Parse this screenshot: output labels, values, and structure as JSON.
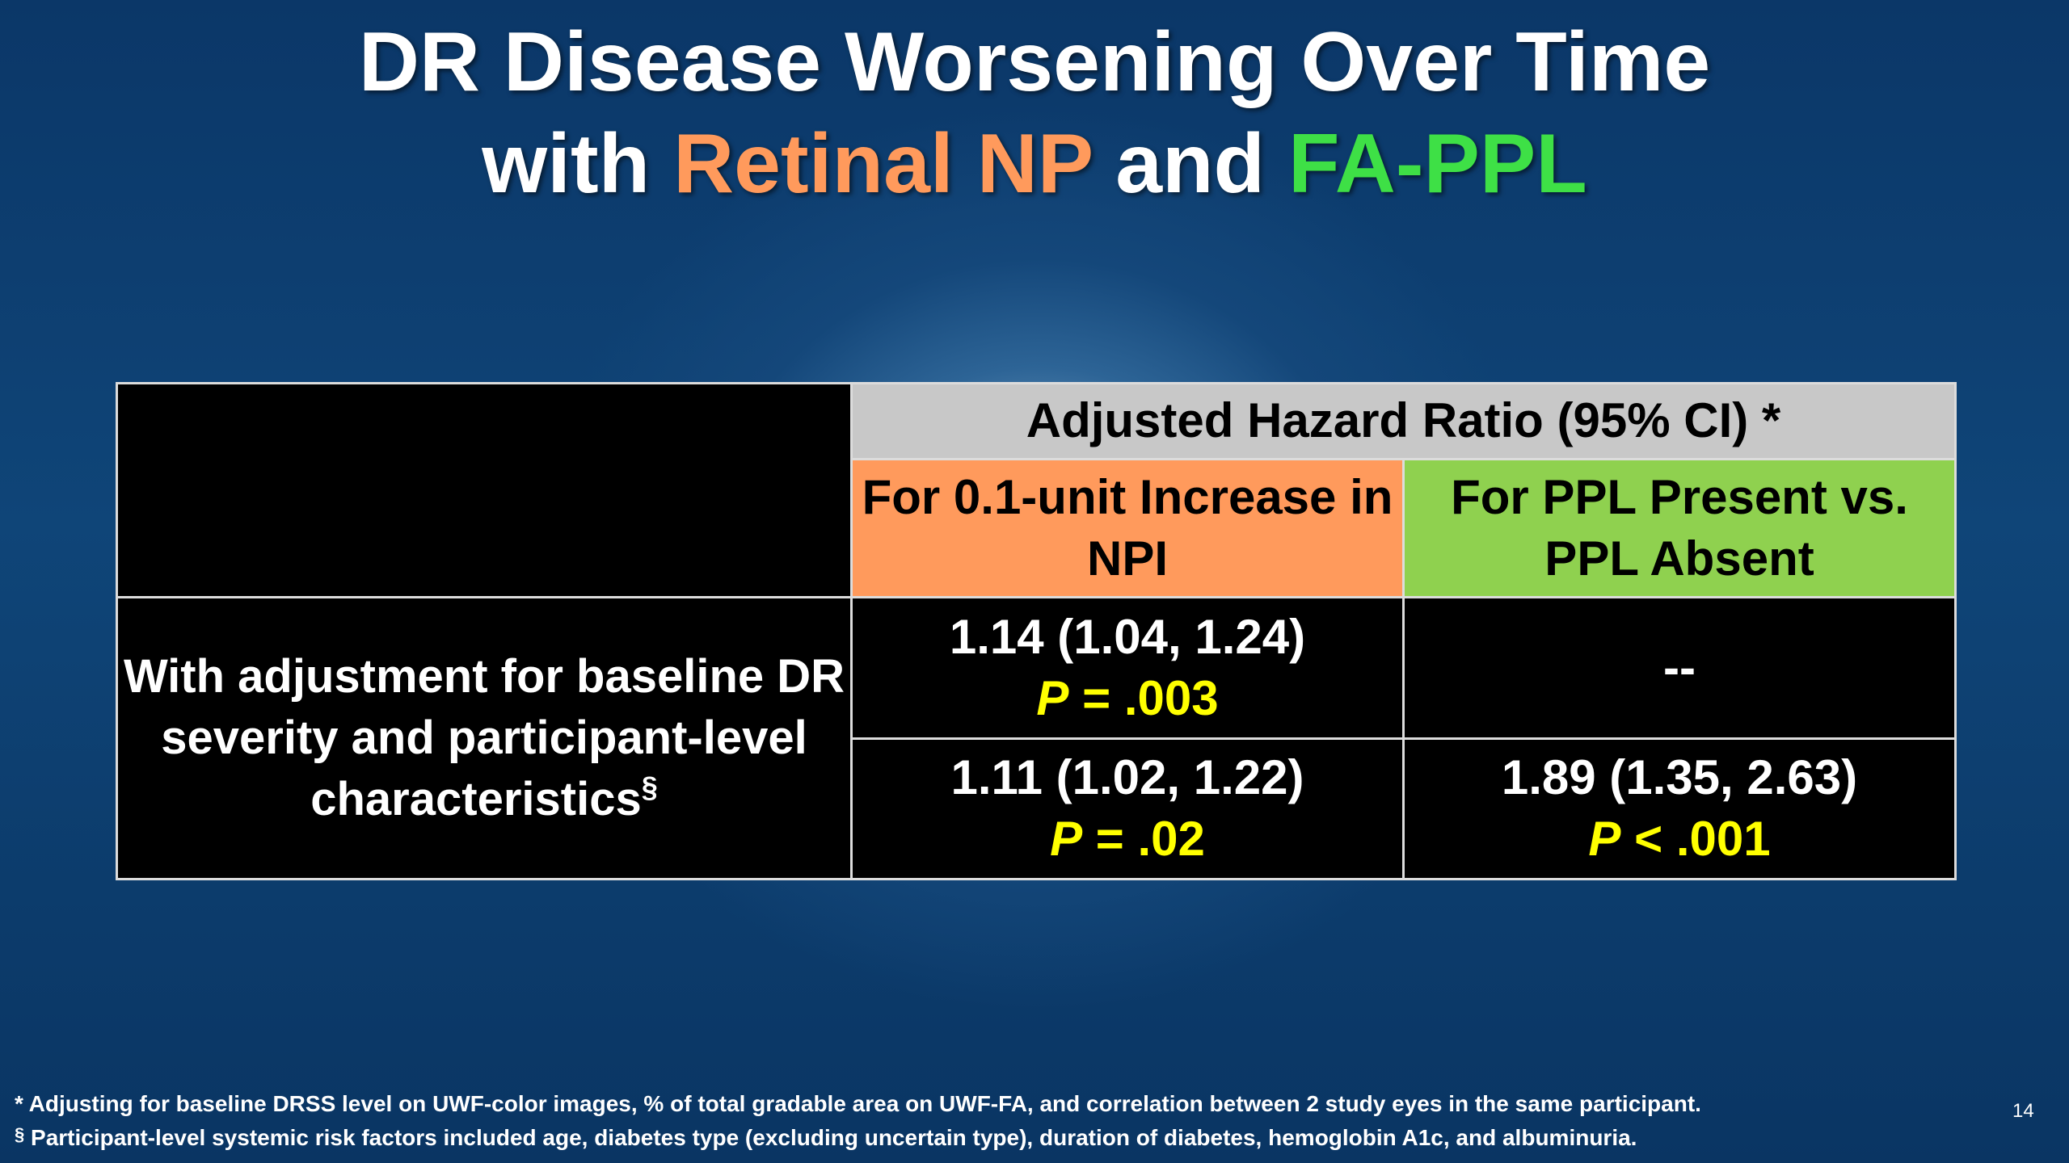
{
  "title": {
    "line1": "DR Disease Worsening Over Time",
    "line2_prefix": "with ",
    "line2_orange": "Retinal NP",
    "line2_mid": " and ",
    "line2_green": "FA-PPL"
  },
  "table": {
    "header": "Adjusted Hazard Ratio (95% CI) *",
    "col_npi": "For 0.1-unit Increase in NPI",
    "col_ppl": "For PPL Present vs. PPL Absent",
    "row_label": "With adjustment for baseline DR severity and participant-level characteristics",
    "row_label_mark": "§",
    "rows": [
      {
        "npi_ci": "1.14 (1.04, 1.24)",
        "npi_p_letter": "P",
        "npi_p_value": " = .003",
        "ppl_value": "--"
      },
      {
        "npi_ci": "1.11 (1.02, 1.22)",
        "npi_p_letter": "P",
        "npi_p_value": " = .02",
        "ppl_ci": "1.89 (1.35, 2.63)",
        "ppl_p_letter": "P",
        "ppl_p_value": " < .001"
      }
    ]
  },
  "footnotes": {
    "fn1_mark": "*",
    "fn1_text": " Adjusting for baseline DRSS level on UWF-color images, % of total gradable area on UWF-FA, and correlation between 2 study eyes in the same participant.",
    "fn2_mark": "§",
    "fn2_text": " Participant-level systemic risk factors included age, diabetes type (excluding uncertain type), duration of diabetes, hemoglobin A1c, and albuminuria."
  },
  "page_number": "14",
  "colors": {
    "orange": "#ff9a5c",
    "green": "#3ee046",
    "ppl_header": "#8fd14f",
    "gray_header": "#c8c8c8",
    "p_value": "#ffff00"
  }
}
